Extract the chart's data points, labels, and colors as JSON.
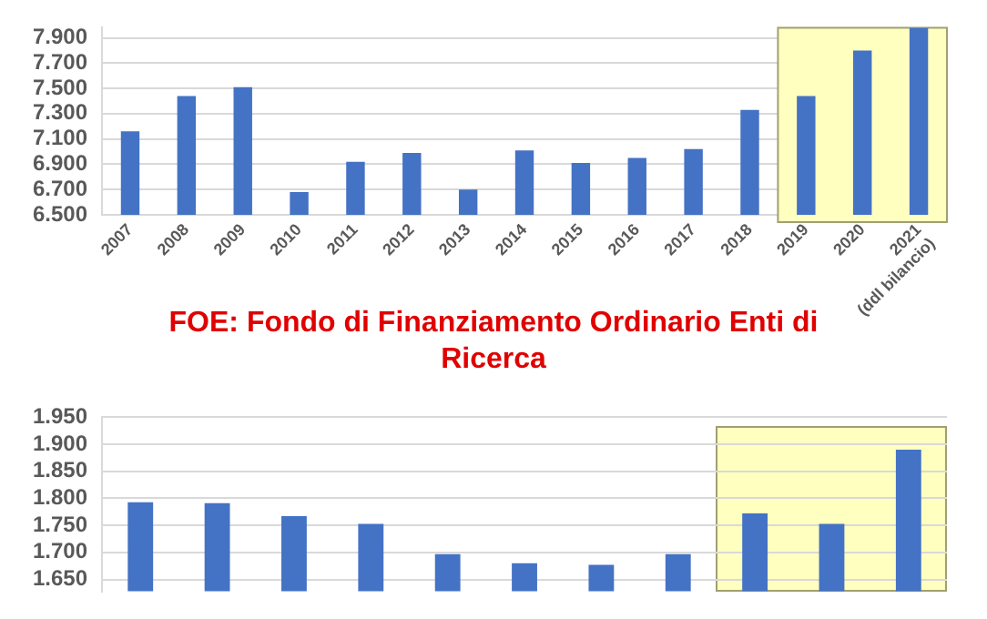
{
  "chart_data": [
    {
      "type": "bar",
      "categories": [
        "2007",
        "2008",
        "2009",
        "2010",
        "2011",
        "2012",
        "2013",
        "2014",
        "2015",
        "2016",
        "2017",
        "2018",
        "2019",
        "2020",
        "2021 (ddl bilancio)"
      ],
      "values": [
        7160,
        7440,
        7510,
        6680,
        6920,
        6990,
        6700,
        7010,
        6910,
        6950,
        7020,
        7330,
        7440,
        7800,
        7980
      ],
      "color": "#4472c4",
      "ylim": [
        6500,
        7980
      ],
      "yticks": [
        {
          "value": 6500,
          "label": "6.500"
        },
        {
          "value": 6700,
          "label": "6.700"
        },
        {
          "value": 6900,
          "label": "6.900"
        },
        {
          "value": 7100,
          "label": "7.100"
        },
        {
          "value": 7300,
          "label": "7.300"
        },
        {
          "value": 7500,
          "label": "7.500"
        },
        {
          "value": 7700,
          "label": "7.700"
        },
        {
          "value": 7900,
          "label": "7.900"
        }
      ],
      "grid": "y",
      "legend": false,
      "bands": [
        {
          "axis": "x",
          "from": "2019",
          "to": "2021 (ddl bilancio)",
          "color": "#ffffc0"
        }
      ]
    },
    {
      "type": "bar",
      "title": "FOE: Fondo di Finanziamento Ordinario Enti di Ricerca",
      "categories": [
        null,
        null,
        null,
        null,
        null,
        null,
        null,
        null,
        null,
        null,
        null
      ],
      "values": [
        1793,
        1791,
        1767,
        1753,
        1697,
        1680,
        1677,
        1697,
        1772,
        1753,
        1890
      ],
      "color": "#4472c4",
      "ylim": [
        1628,
        1950
      ],
      "yticks": [
        {
          "value": 1650,
          "label": "1.650"
        },
        {
          "value": 1700,
          "label": "1.700"
        },
        {
          "value": 1750,
          "label": "1.750"
        },
        {
          "value": 1800,
          "label": "1.800"
        },
        {
          "value": 1850,
          "label": "1.850"
        },
        {
          "value": 1900,
          "label": "1.900"
        },
        {
          "value": 1950,
          "label": "1.950"
        }
      ],
      "grid": "y",
      "legend": false,
      "tick_labels": "y"
    }
  ]
}
